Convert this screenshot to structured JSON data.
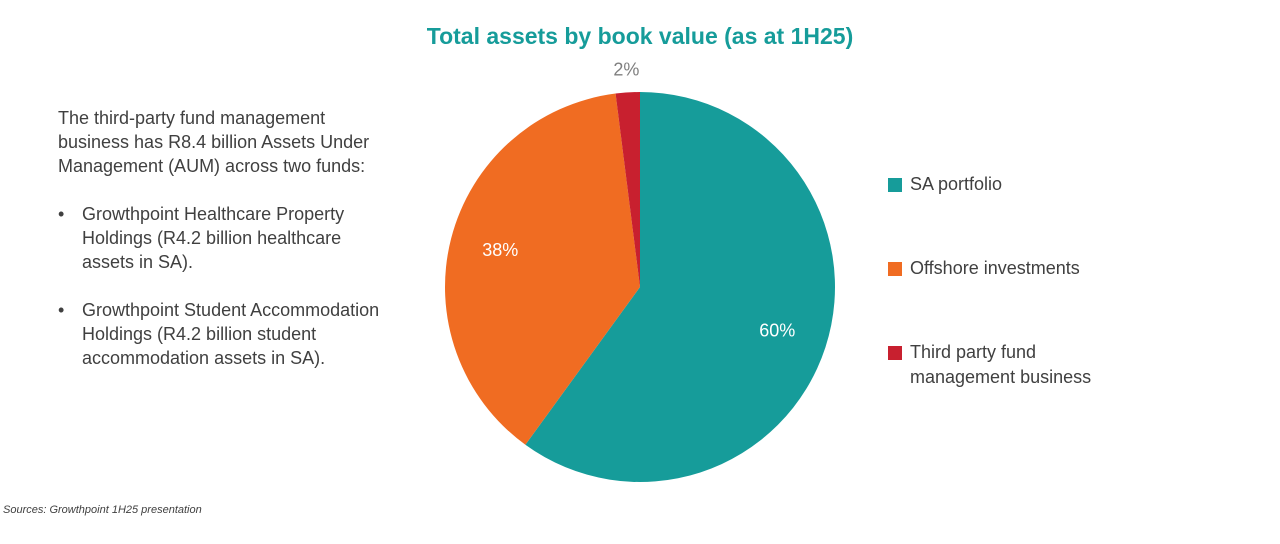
{
  "chart_data": {
    "type": "pie",
    "title": "Total assets by book value (as at 1H25)",
    "categories": [
      "SA portfolio",
      "Offshore investments",
      "Third party fund management business"
    ],
    "values": [
      60,
      38,
      2
    ],
    "value_labels": [
      "60%",
      "38%",
      "2%"
    ],
    "colors": [
      "#169c9a",
      "#f06c22",
      "#c8202f"
    ],
    "legend": "right"
  },
  "notes": {
    "intro": "The third-party fund management business has R8.4 billion Assets Under Management (AUM) across two funds:",
    "bullets": [
      "Growthpoint Healthcare Property Holdings (R4.2 billion healthcare assets in SA).",
      "Growthpoint Student Accommodation Holdings (R4.2 billion student accommodation assets in SA)."
    ]
  },
  "source": "Sources: Growthpoint 1H25 presentation"
}
